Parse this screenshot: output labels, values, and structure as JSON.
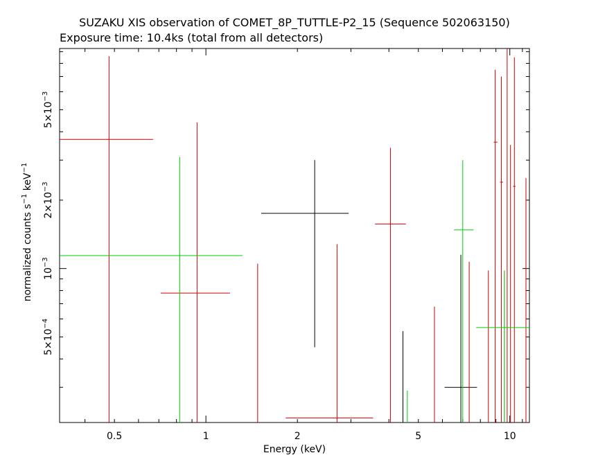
{
  "chart_data": {
    "type": "scatter",
    "title": "SUZAKU XIS observation of COMET_8P_TUTTLE-P2_15 (Sequence 502063150)",
    "subtitle": "Exposure time: 10.4ks (total from all detectors)",
    "xlabel": "Energy (keV)",
    "ylabel_main": "normalized counts s",
    "ylabel_sup1": "−1",
    "ylabel_mid": " keV",
    "ylabel_sup2": "−1",
    "x_scale": "log",
    "y_scale": "log",
    "xlim": [
      0.33,
      11.6
    ],
    "ylim": [
      0.00021,
      0.0093
    ],
    "x_ticks": [
      {
        "value": 0.5,
        "label": "0.5"
      },
      {
        "value": 1,
        "label": "1"
      },
      {
        "value": 2,
        "label": "2"
      },
      {
        "value": 5,
        "label": "5"
      },
      {
        "value": 10,
        "label": "10"
      }
    ],
    "y_ticks": [
      {
        "value": 0.0005,
        "mant": "5×10",
        "exp": "−4"
      },
      {
        "value": 0.001,
        "mant": "10",
        "exp": "−3"
      },
      {
        "value": 0.002,
        "mant": "2×10",
        "exp": "−3"
      },
      {
        "value": 0.005,
        "mant": "5×10",
        "exp": "−3"
      }
    ],
    "colors": {
      "black": "#000000",
      "red": "#cc0000",
      "green": "#00cc00"
    },
    "series": [
      {
        "color": "#000000",
        "points": [
          {
            "x": 2.28,
            "xlo": 1.52,
            "xhi": 2.95,
            "y": 0.00175,
            "ylo": 0.00045,
            "yhi": 0.003
          },
          {
            "x": 4.45,
            "y": 0.0,
            "ylo": 0.00021,
            "yhi": 0.00053
          },
          {
            "x": 6.9,
            "xlo": 6.1,
            "xhi": 7.8,
            "y": 0.0003,
            "ylo": 0.00021,
            "yhi": 0.00115
          },
          {
            "x": 9.6,
            "y": 0.0,
            "ylo": 0.00021,
            "yhi": 0.00098
          }
        ]
      },
      {
        "color": "#cc0000",
        "points": [
          {
            "x": 0.48,
            "xlo": 0.33,
            "xhi": 0.67,
            "y": 0.0037,
            "ylo": 0.00021,
            "yhi": 0.0086
          },
          {
            "x": 0.935,
            "xlo": 0.71,
            "xhi": 1.2,
            "y": 0.00078,
            "ylo": 0.00021,
            "yhi": 0.0044
          },
          {
            "x": 1.48,
            "y": 0.0,
            "ylo": 0.00021,
            "yhi": 0.00105
          },
          {
            "x": 2.7,
            "xlo": 1.83,
            "xhi": 3.55,
            "y": 0.00022,
            "ylo": 0.00021,
            "yhi": 0.00128
          },
          {
            "x": 4.05,
            "xlo": 3.6,
            "xhi": 4.55,
            "y": 0.00157,
            "ylo": 0.00021,
            "yhi": 0.0034
          },
          {
            "x": 5.65,
            "y": 0.0,
            "ylo": 0.00021,
            "yhi": 0.00068
          },
          {
            "x": 7.35,
            "y": 0.0,
            "ylo": 0.00021,
            "yhi": 0.00107
          },
          {
            "x": 8.5,
            "y": 0.0,
            "ylo": 0.00021,
            "yhi": 0.00098
          },
          {
            "x": 8.95,
            "xlo": 8.85,
            "xhi": 9.1,
            "y": 0.0036,
            "ylo": 0.00021,
            "yhi": 0.0075
          },
          {
            "x": 9.38,
            "xlo": 9.28,
            "xhi": 9.5,
            "y": 0.0024,
            "ylo": 0.00021,
            "yhi": 0.007
          },
          {
            "x": 9.8,
            "y": 0.0,
            "ylo": 0.00021,
            "yhi": 0.0093
          },
          {
            "x": 10.05,
            "y": 0.0,
            "ylo": 0.00021,
            "yhi": 0.0035
          },
          {
            "x": 10.35,
            "xlo": 10.25,
            "xhi": 10.45,
            "y": 0.0023,
            "ylo": 0.00021,
            "yhi": 0.0085
          },
          {
            "x": 11.3,
            "y": 0.0,
            "ylo": 0.00021,
            "yhi": 0.0025
          }
        ]
      },
      {
        "color": "#00cc00",
        "points": [
          {
            "x": 0.82,
            "xlo": 0.33,
            "xhi": 1.32,
            "y": 0.00114,
            "ylo": 0.00021,
            "yhi": 0.0031
          },
          {
            "x": 4.6,
            "y": 0.0,
            "ylo": 0.00021,
            "yhi": 0.00029
          },
          {
            "x": 7.0,
            "xlo": 6.55,
            "xhi": 7.6,
            "y": 0.00148,
            "ylo": 0.00021,
            "yhi": 0.003
          },
          {
            "x": 9.6,
            "xlo": 7.75,
            "xhi": 11.6,
            "y": 0.00055,
            "ylo": 0.00021,
            "yhi": 0.00098
          }
        ]
      }
    ]
  }
}
